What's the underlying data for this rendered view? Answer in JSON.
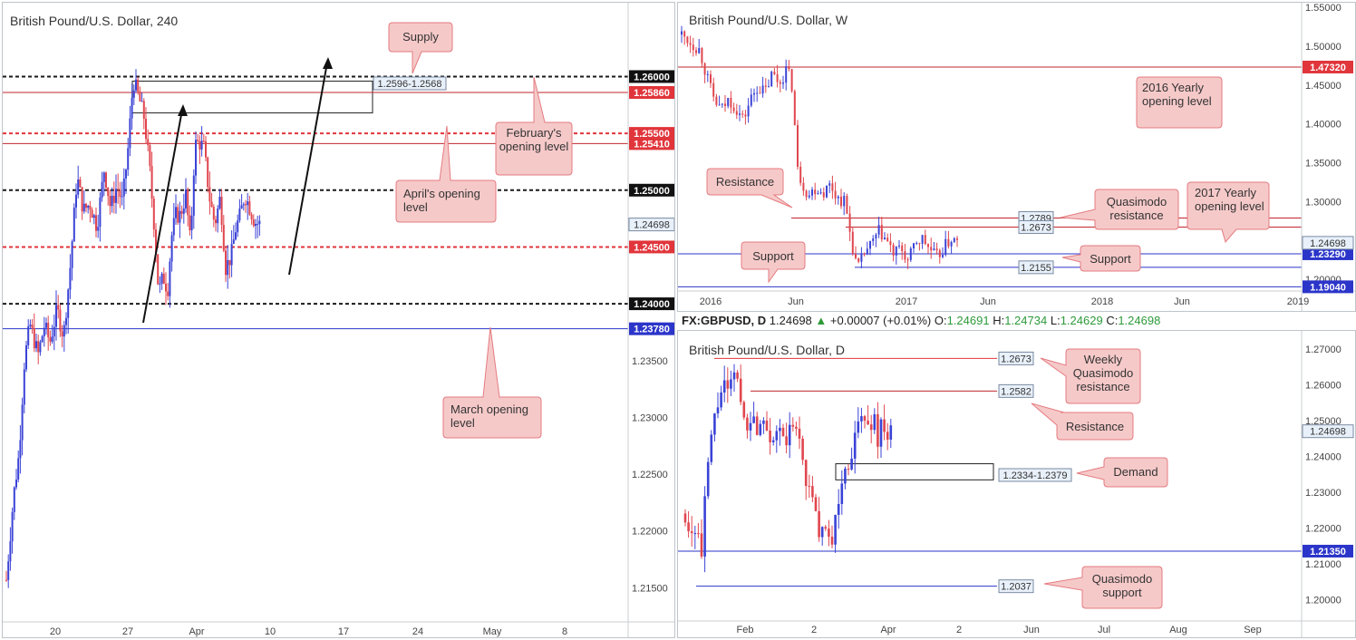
{
  "colors": {
    "bull": "#3a43d6",
    "bear": "#e0464e",
    "black_level": "#1a1a1a",
    "red_level": "#e0353b",
    "dark_red_level": "#c0272d",
    "blue_level": "#2b35c9",
    "callout_fill": "#f6c9c9",
    "callout_stroke": "#e47b80",
    "box_label_fill": "#e8f0fa",
    "change_up": "#2e9a3a"
  },
  "h4_chart": {
    "title": "British Pound/U.S. Dollar, 240",
    "ylim": [
      1.212,
      1.2665
    ],
    "y_ticks": [
      1.215,
      1.22,
      1.225,
      1.23,
      1.235
    ],
    "x_ticks": [
      "20",
      "27",
      "Apr",
      "10",
      "17",
      "24",
      "May",
      "8"
    ],
    "price_points": [
      [
        0,
        1.2157
      ],
      [
        8,
        1.2231
      ],
      [
        14,
        1.2268
      ],
      [
        20,
        1.235
      ],
      [
        26,
        1.2382
      ],
      [
        35,
        1.2355
      ],
      [
        42,
        1.2381
      ],
      [
        48,
        1.2366
      ],
      [
        56,
        1.2395
      ],
      [
        63,
        1.2371
      ],
      [
        70,
        1.2428
      ],
      [
        78,
        1.2512
      ],
      [
        85,
        1.2482
      ],
      [
        92,
        1.2488
      ],
      [
        100,
        1.2468
      ],
      [
        108,
        1.2519
      ],
      [
        115,
        1.2484
      ],
      [
        122,
        1.2504
      ],
      [
        128,
        1.2489
      ],
      [
        134,
        1.2534
      ],
      [
        140,
        1.2597
      ],
      [
        146,
        1.2582
      ],
      [
        152,
        1.2564
      ],
      [
        158,
        1.252
      ],
      [
        164,
        1.246
      ],
      [
        168,
        1.241
      ],
      [
        173,
        1.2424
      ],
      [
        178,
        1.2412
      ],
      [
        182,
        1.2458
      ],
      [
        187,
        1.2478
      ],
      [
        192,
        1.2478
      ],
      [
        198,
        1.2496
      ],
      [
        203,
        1.2452
      ],
      [
        208,
        1.254
      ],
      [
        213,
        1.2542
      ],
      [
        218,
        1.2537
      ],
      [
        224,
        1.2494
      ],
      [
        230,
        1.247
      ],
      [
        236,
        1.2494
      ],
      [
        242,
        1.2432
      ],
      [
        248,
        1.2442
      ],
      [
        253,
        1.2466
      ],
      [
        258,
        1.2478
      ],
      [
        263,
        1.2496
      ],
      [
        268,
        1.2486
      ],
      [
        274,
        1.2472
      ],
      [
        280,
        1.247
      ]
    ],
    "levels": [
      {
        "price": 1.26,
        "style": "black_dash",
        "label": "1.26000",
        "tag": "black"
      },
      {
        "price": 1.2586,
        "style": "red_solid",
        "label": "1.25860",
        "tag": "red"
      },
      {
        "price": 1.255,
        "style": "red_dash",
        "label": "1.25500",
        "tag": "red"
      },
      {
        "price": 1.2541,
        "style": "red_solid",
        "label": "1.25410",
        "tag": "red"
      },
      {
        "price": 1.25,
        "style": "black_dash",
        "label": "1.25000",
        "tag": "black"
      },
      {
        "price": 1.245,
        "style": "red_dash",
        "label": "1.24500",
        "tag": "red"
      },
      {
        "price": 1.24,
        "style": "black_dash",
        "label": "1.24000",
        "tag": "black"
      },
      {
        "price": 1.2378,
        "style": "blue_solid",
        "label": "1.23780",
        "tag": "blue"
      }
    ],
    "current_price_label": "1.24698",
    "current_price": 1.24698,
    "supply_zone": {
      "top": 1.2596,
      "bottom": 1.2568,
      "label": "1.2596-1.2568"
    },
    "callouts": {
      "supply": "Supply",
      "february": "February's opening level",
      "april": "April's opening level",
      "march": "March opening level"
    }
  },
  "weekly_chart": {
    "title": "British Pound/U.S. Dollar, W",
    "ylim": [
      1.185,
      1.556
    ],
    "y_ticks": [
      1.55,
      1.5,
      1.45,
      1.4,
      1.35,
      1.3,
      1.25,
      1.2
    ],
    "x_ticks": [
      "2016",
      "Jun",
      "2017",
      "Jun",
      "2018",
      "Jun",
      "2019"
    ],
    "price_points": [
      [
        0,
        1.515
      ],
      [
        10,
        1.505
      ],
      [
        20,
        1.495
      ],
      [
        28,
        1.46
      ],
      [
        36,
        1.43
      ],
      [
        44,
        1.418
      ],
      [
        52,
        1.432
      ],
      [
        60,
        1.42
      ],
      [
        68,
        1.405
      ],
      [
        76,
        1.432
      ],
      [
        84,
        1.448
      ],
      [
        92,
        1.44
      ],
      [
        100,
        1.465
      ],
      [
        108,
        1.452
      ],
      [
        116,
        1.472
      ],
      [
        122,
        1.448
      ],
      [
        128,
        1.34
      ],
      [
        134,
        1.322
      ],
      [
        140,
        1.308
      ],
      [
        148,
        1.318
      ],
      [
        156,
        1.312
      ],
      [
        164,
        1.322
      ],
      [
        172,
        1.305
      ],
      [
        180,
        1.3
      ],
      [
        188,
        1.245
      ],
      [
        194,
        1.212
      ],
      [
        202,
        1.235
      ],
      [
        210,
        1.245
      ],
      [
        218,
        1.262
      ],
      [
        226,
        1.25
      ],
      [
        234,
        1.232
      ],
      [
        242,
        1.24
      ],
      [
        250,
        1.222
      ],
      [
        258,
        1.248
      ],
      [
        266,
        1.252
      ],
      [
        274,
        1.238
      ],
      [
        282,
        1.228
      ],
      [
        290,
        1.242
      ],
      [
        298,
        1.252
      ],
      [
        304,
        1.248
      ]
    ],
    "levels": [
      {
        "price": 1.4732,
        "color": "dark_red",
        "label": "1.47320",
        "tag": "red",
        "from": 0
      },
      {
        "price": 1.2789,
        "color": "dark_red",
        "label": "1.2789",
        "tag": "box",
        "from": 125
      },
      {
        "price": 1.2673,
        "color": "dark_red",
        "label": "1.2673",
        "tag": "box",
        "from": 185
      },
      {
        "price": 1.2329,
        "color": "blue",
        "label": "1.23290",
        "tag": "blue",
        "from": 0
      },
      {
        "price": 1.2155,
        "color": "blue",
        "label": "1.2155",
        "tag": "box",
        "from": 195
      },
      {
        "price": 1.1904,
        "color": "blue",
        "label": "1.19040",
        "tag": "blue",
        "from": 0
      }
    ],
    "current_price_label": "1.24698",
    "current_price": 1.24698,
    "callouts": {
      "yearly_2016": "2016 Yearly opening level",
      "resistance": "Resistance",
      "quasimodo": "Quasimodo resistance",
      "yearly_2017": "2017 Yearly opening level",
      "support_left": "Support",
      "support_right": "Support"
    }
  },
  "daily_chart": {
    "header": {
      "symbol": "FX:GBPUSD, D",
      "last": "1.24698",
      "change": "+0.00007 (+0.01%)",
      "o_label": "O:",
      "o": "1.24691",
      "h_label": "H:",
      "h": "1.24734",
      "l_label": "L:",
      "l": "1.24629",
      "c_label": "C:",
      "c": "1.24698"
    },
    "title": "British Pound/U.S. Dollar, D",
    "ylim": [
      1.194,
      1.275
    ],
    "y_ticks": [
      1.27,
      1.26,
      1.25,
      1.24,
      1.23,
      1.22,
      1.21,
      1.2
    ],
    "x_ticks": [
      "Feb",
      "2",
      "Apr",
      "2",
      "Jun",
      "Jul",
      "Aug",
      "Sep"
    ],
    "price_points": [
      [
        0,
        1.224
      ],
      [
        6,
        1.218
      ],
      [
        12,
        1.221
      ],
      [
        18,
        1.212
      ],
      [
        24,
        1.2355
      ],
      [
        30,
        1.247
      ],
      [
        36,
        1.255
      ],
      [
        42,
        1.26
      ],
      [
        48,
        1.256
      ],
      [
        54,
        1.264
      ],
      [
        60,
        1.258
      ],
      [
        66,
        1.248
      ],
      [
        72,
        1.252
      ],
      [
        78,
        1.247
      ],
      [
        84,
        1.252
      ],
      [
        90,
        1.249
      ],
      [
        96,
        1.245
      ],
      [
        102,
        1.248
      ],
      [
        108,
        1.243
      ],
      [
        114,
        1.246
      ],
      [
        120,
        1.248
      ],
      [
        126,
        1.245
      ],
      [
        132,
        1.235
      ],
      [
        138,
        1.229
      ],
      [
        144,
        1.223
      ],
      [
        150,
        1.218
      ],
      [
        156,
        1.217
      ],
      [
        162,
        1.218
      ],
      [
        168,
        1.224
      ],
      [
        172,
        1.233
      ],
      [
        178,
        1.236
      ],
      [
        184,
        1.242
      ],
      [
        190,
        1.247
      ],
      [
        196,
        1.252
      ],
      [
        202,
        1.247
      ],
      [
        208,
        1.252
      ],
      [
        212,
        1.244
      ],
      [
        218,
        1.251
      ],
      [
        224,
        1.245
      ],
      [
        230,
        1.247
      ]
    ],
    "levels": [
      {
        "price": 1.2673,
        "color": "red",
        "label": "1.2673",
        "tag": "box",
        "from": 40
      },
      {
        "price": 1.2582,
        "color": "dark_red",
        "label": "1.2582",
        "tag": "box",
        "from": 80
      },
      {
        "price": 1.2135,
        "color": "blue",
        "label": "1.21350",
        "tag": "blue",
        "from": 0
      },
      {
        "price": 1.2037,
        "color": "blue",
        "label": "1.2037",
        "tag": "box",
        "from": 20
      }
    ],
    "current_price_label": "1.24698",
    "current_price": 1.24698,
    "demand_zone": {
      "top": 1.2379,
      "bottom": 1.2334,
      "label": "1.2334-1.2379"
    },
    "callouts": {
      "weekly_qm": "Weekly Quasimodo resistance",
      "resistance": "Resistance",
      "demand": "Demand",
      "qm_support": "Quasimodo support"
    }
  }
}
